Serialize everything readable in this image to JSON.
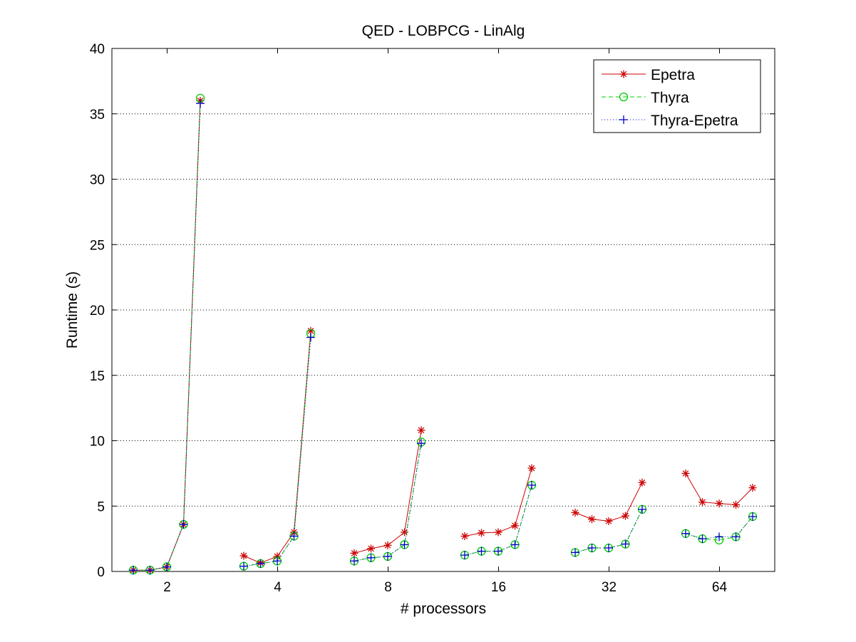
{
  "chart_data": {
    "type": "line",
    "title": "QED - LOBPCG - LinAlg",
    "xlabel": "# processors",
    "ylabel": "Runtime (s)",
    "ylim": [
      0,
      40
    ],
    "yticks": [
      0,
      5,
      10,
      15,
      20,
      25,
      30,
      35,
      40
    ],
    "grid": "horizontal dotted",
    "legend_position": "top-right",
    "categories": [
      "2",
      "4",
      "8",
      "16",
      "32",
      "64"
    ],
    "points_per_group": 5,
    "series": [
      {
        "name": "Epetra",
        "color": "#cc0000",
        "marker": "asterisk",
        "line_style": "solid",
        "groups": [
          [
            0.1,
            0.1,
            0.35,
            3.6,
            36.0
          ],
          [
            1.2,
            0.65,
            1.15,
            3.0,
            18.4
          ],
          [
            1.4,
            1.75,
            2.0,
            3.0,
            10.8
          ],
          [
            2.7,
            2.95,
            3.0,
            3.5,
            7.9
          ],
          [
            4.5,
            4.0,
            3.85,
            4.25,
            6.8
          ],
          [
            7.5,
            5.3,
            5.2,
            5.1,
            6.4
          ]
        ]
      },
      {
        "name": "Thyra",
        "color": "#00cc00",
        "marker": "circle",
        "line_style": "dashed",
        "groups": [
          [
            0.1,
            0.1,
            0.35,
            3.6,
            36.2
          ],
          [
            0.4,
            0.6,
            0.8,
            2.7,
            18.2
          ],
          [
            0.8,
            1.05,
            1.15,
            2.05,
            9.9
          ],
          [
            1.25,
            1.55,
            1.55,
            2.05,
            6.6
          ],
          [
            1.45,
            1.8,
            1.8,
            2.1,
            4.75
          ],
          [
            2.9,
            2.5,
            2.4,
            2.65,
            4.2
          ]
        ]
      },
      {
        "name": "Thyra-Epetra",
        "color": "#0000cc",
        "marker": "plus",
        "line_style": "dotted",
        "groups": [
          [
            0.1,
            0.1,
            0.35,
            3.6,
            35.8
          ],
          [
            0.4,
            0.6,
            0.8,
            2.7,
            17.9
          ],
          [
            0.8,
            1.05,
            1.15,
            2.05,
            9.8
          ],
          [
            1.25,
            1.55,
            1.55,
            2.05,
            6.6
          ],
          [
            1.45,
            1.8,
            1.8,
            2.1,
            4.75
          ],
          [
            2.9,
            2.5,
            2.65,
            2.65,
            4.2
          ]
        ]
      }
    ]
  }
}
